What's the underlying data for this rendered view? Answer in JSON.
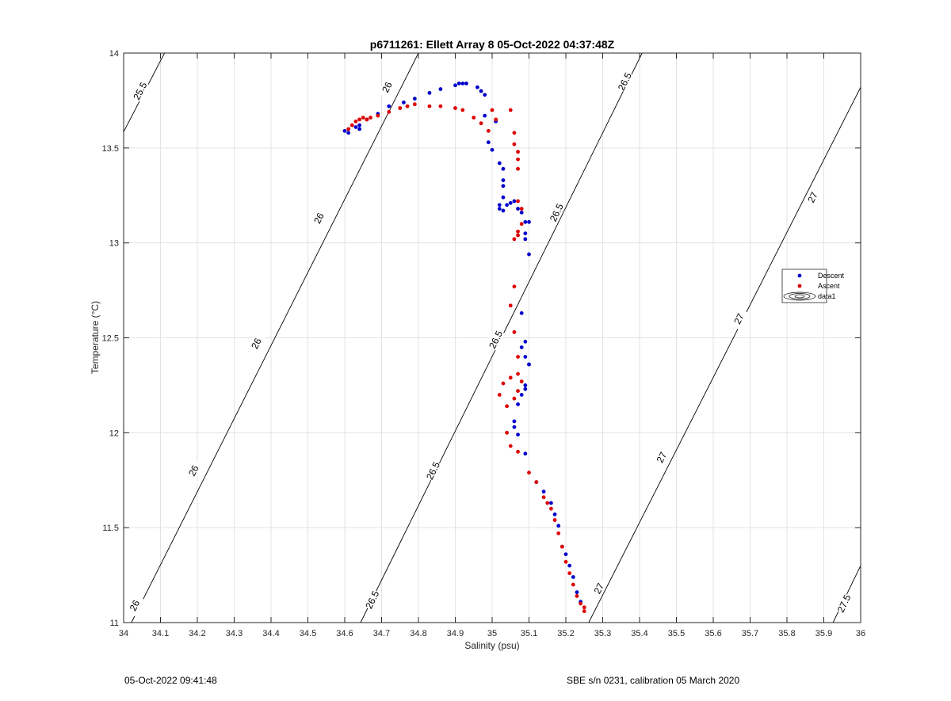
{
  "footer": {
    "left": "05-Oct-2022 09:41:48",
    "right": "SBE s/n 0231, calibration 05 March 2020"
  },
  "colors": {
    "descent": "#0000cc",
    "ascent": "#dd0000",
    "grid": "#e3e3e3",
    "axis": "#262626",
    "contour": "#000000"
  },
  "chart_data": {
    "type": "scatter",
    "title": "p6711261: Ellett Array 8 05-Oct-2022 04:37:48Z",
    "xlabel": "Salinity (psu)",
    "ylabel": "Temperature (°C)",
    "xlim": [
      34,
      36
    ],
    "ylim": [
      11,
      14
    ],
    "xticks": [
      34,
      34.1,
      34.2,
      34.3,
      34.4,
      34.5,
      34.6,
      34.7,
      34.8,
      34.9,
      35,
      35.1,
      35.2,
      35.3,
      35.4,
      35.5,
      35.6,
      35.7,
      35.8,
      35.9,
      36
    ],
    "xtick_labels": [
      "34",
      "34.1",
      "34.2",
      "34.3",
      "34.4",
      "34.5",
      "34.6",
      "34.7",
      "34.8",
      "34.9",
      "35",
      "35.1",
      "35.2",
      "35.3",
      "35.4",
      "35.5",
      "35.6",
      "35.7",
      "35.8",
      "35.9",
      "36"
    ],
    "yticks": [
      11,
      11.5,
      12,
      12.5,
      13,
      13.5,
      14
    ],
    "ytick_labels": [
      "11",
      "11.5",
      "12",
      "12.5",
      "13",
      "13.5",
      "14"
    ],
    "grid": true,
    "legend_position": "right",
    "legend": [
      {
        "name": "Descent",
        "marker": "dot",
        "color": "#0000cc"
      },
      {
        "name": "Ascent",
        "marker": "dot",
        "color": "#dd0000"
      },
      {
        "name": "data1",
        "marker": "contour",
        "color": "#000000"
      }
    ],
    "density_contours": [
      {
        "label": "25.5",
        "line": [
          [
            34.0,
            13.585
          ],
          [
            34.111,
            14.0
          ]
        ],
        "label_at": [
          [
            34.045,
            13.8
          ]
        ]
      },
      {
        "label": "26",
        "line": [
          [
            34.021,
            11.0
          ],
          [
            34.8,
            14.0
          ]
        ],
        "label_at": [
          [
            34.03,
            11.09
          ],
          [
            34.19,
            11.8
          ],
          [
            34.36,
            12.47
          ],
          [
            34.53,
            13.13
          ],
          [
            34.715,
            13.82
          ]
        ]
      },
      {
        "label": "26.5",
        "line": [
          [
            34.643,
            11.0
          ],
          [
            35.407,
            14.0
          ]
        ],
        "label_at": [
          [
            34.675,
            11.12
          ],
          [
            34.84,
            11.8
          ],
          [
            35.01,
            12.49
          ],
          [
            35.175,
            13.16
          ],
          [
            35.36,
            13.85
          ]
        ]
      },
      {
        "label": "27",
        "line": [
          [
            35.262,
            11.0
          ],
          [
            36.0,
            13.82
          ]
        ],
        "label_at": [
          [
            35.29,
            11.18
          ],
          [
            35.46,
            11.87
          ],
          [
            35.67,
            12.6
          ],
          [
            35.87,
            13.24
          ]
        ]
      },
      {
        "label": "27.5",
        "line": [
          [
            35.925,
            11.0
          ],
          [
            36.0,
            11.3
          ]
        ],
        "label_at": [
          [
            35.955,
            11.1
          ]
        ]
      }
    ],
    "series": [
      {
        "name": "Descent",
        "x": [
          34.6,
          34.61,
          34.63,
          34.64,
          34.64,
          34.66,
          34.69,
          34.72,
          34.76,
          34.79,
          34.83,
          34.86,
          34.9,
          34.91,
          34.92,
          34.93,
          34.96,
          34.97,
          34.98,
          34.98,
          34.99,
          35.0,
          35.01,
          35.02,
          35.03,
          35.03,
          35.03,
          35.02,
          35.02,
          35.03,
          35.03,
          35.04,
          35.05,
          35.06,
          35.07,
          35.08,
          35.09,
          35.1,
          35.09,
          35.09,
          35.1,
          35.09,
          35.08,
          35.08,
          35.09,
          35.1,
          35.1,
          35.09,
          35.09,
          35.08,
          35.07,
          35.06,
          35.06,
          35.07,
          35.09,
          35.12,
          35.14,
          35.16,
          35.17,
          35.18,
          35.19,
          35.2,
          35.21,
          35.22,
          35.23,
          35.24
        ],
        "y": [
          13.59,
          13.58,
          13.61,
          13.62,
          13.6,
          13.65,
          13.68,
          13.72,
          13.74,
          13.76,
          13.79,
          13.81,
          13.83,
          13.84,
          13.84,
          13.84,
          13.82,
          13.8,
          13.78,
          13.67,
          13.53,
          13.49,
          13.64,
          13.42,
          13.39,
          13.33,
          13.24,
          13.2,
          13.18,
          13.17,
          13.3,
          13.2,
          13.21,
          13.22,
          13.18,
          13.16,
          13.11,
          13.11,
          13.05,
          13.02,
          12.94,
          12.48,
          12.63,
          12.45,
          12.4,
          12.36,
          12.36,
          12.25,
          12.23,
          12.2,
          12.15,
          12.06,
          12.03,
          11.99,
          11.89,
          11.74,
          11.69,
          11.63,
          11.57,
          11.51,
          11.4,
          11.36,
          11.3,
          11.24,
          11.16,
          11.11
        ],
        "color": "#0000cc"
      },
      {
        "name": "Ascent",
        "x": [
          34.61,
          34.62,
          34.63,
          34.64,
          34.65,
          34.66,
          34.67,
          34.69,
          34.72,
          34.75,
          34.77,
          34.79,
          34.83,
          34.86,
          34.9,
          34.92,
          34.95,
          34.97,
          34.99,
          35.0,
          35.01,
          35.05,
          35.06,
          35.06,
          35.07,
          35.07,
          35.07,
          35.07,
          35.08,
          35.08,
          35.07,
          35.07,
          35.06,
          35.06,
          35.05,
          35.06,
          35.07,
          35.07,
          35.08,
          35.07,
          35.06,
          35.04,
          35.05,
          35.03,
          35.02,
          35.04,
          35.05,
          35.07,
          35.1,
          35.12,
          35.14,
          35.15,
          35.16,
          35.17,
          35.18,
          35.19,
          35.2,
          35.21,
          35.22,
          35.23,
          35.24,
          35.25,
          35.25
        ],
        "y": [
          13.6,
          13.62,
          13.64,
          13.65,
          13.66,
          13.65,
          13.66,
          13.67,
          13.69,
          13.71,
          13.72,
          13.73,
          13.72,
          13.72,
          13.71,
          13.7,
          13.66,
          13.63,
          13.59,
          13.7,
          13.65,
          13.7,
          13.58,
          13.52,
          13.48,
          13.44,
          13.39,
          13.22,
          13.18,
          13.1,
          13.06,
          13.04,
          13.02,
          12.77,
          12.67,
          12.53,
          12.4,
          12.31,
          12.27,
          12.22,
          12.18,
          12.14,
          12.29,
          12.26,
          12.2,
          12.0,
          11.93,
          11.9,
          11.79,
          11.74,
          11.66,
          11.63,
          11.6,
          11.54,
          11.47,
          11.4,
          11.32,
          11.26,
          11.2,
          11.14,
          11.1,
          11.08,
          11.06
        ],
        "color": "#dd0000"
      }
    ]
  }
}
